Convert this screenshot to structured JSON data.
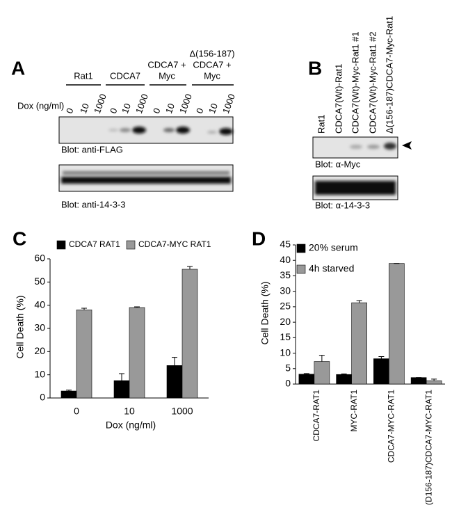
{
  "blots": {
    "A": {
      "panel": "A",
      "groups": [
        [
          "Rat1"
        ],
        [
          "CDCA7"
        ],
        [
          "CDCA7 +",
          "Myc"
        ],
        [
          "Δ(156-187)",
          "CDCA7 +",
          "Myc"
        ]
      ],
      "dox_label": "Dox (ng/ml)",
      "lanes": [
        "0",
        "10",
        "1000",
        "0",
        "10",
        "1000",
        "0",
        "10",
        "1000",
        "0",
        "10",
        "1000"
      ],
      "blot_labels": [
        "Blot: anti-FLAG",
        "Blot: anti-14-3-3"
      ]
    },
    "B": {
      "panel": "B",
      "lanes": [
        "Rat1",
        "CDCA7(Wt)-Rat1",
        "CDCA7(Wt)-Myc-Rat1 #1",
        "CDCA7(Wt)-Myc-Rat1 #2",
        "Δ(156-187)CDCA7-Myc-Rat1"
      ],
      "blot_labels": [
        "Blot: α-Myc",
        "Blot: α-14-3-3"
      ]
    }
  },
  "chart_data": [
    {
      "type": "bar",
      "panel": "C",
      "x_label": "Dox (ng/ml)",
      "y_label": "Cell Death (%)",
      "categories": [
        "0",
        "10",
        "1000"
      ],
      "series": [
        {
          "name": "CDCA7 RAT1",
          "color": "#000000",
          "values": [
            3,
            7.5,
            14
          ],
          "errors": [
            0.4,
            3,
            3.5
          ]
        },
        {
          "name": "CDCA7-MYC RAT1",
          "color": "#999999",
          "values": [
            38,
            39,
            55.5
          ],
          "errors": [
            0.7,
            0.3,
            1.2
          ]
        }
      ],
      "ylim": [
        0,
        60
      ],
      "yticks": [
        0,
        10,
        20,
        30,
        40,
        50,
        60
      ],
      "legend": "top"
    },
    {
      "type": "bar",
      "panel": "D",
      "y_label": "Cell Death (%)",
      "categories": [
        "CDCA7-RAT1",
        "MYC-RAT1",
        "CDCA7-MYC-RAT1",
        "(D156-187)CDCA7-MYC-RAT1"
      ],
      "series": [
        {
          "name": "20% serum",
          "color": "#000000",
          "values": [
            3.2,
            3.1,
            8.2,
            2.1
          ],
          "errors": [
            0.2,
            0.2,
            0.7,
            0
          ]
        },
        {
          "name": "4h starved",
          "color": "#999999",
          "values": [
            7.3,
            26.3,
            39,
            1.1
          ],
          "errors": [
            2,
            0.7,
            0,
            0.5
          ]
        }
      ],
      "ylim": [
        0,
        45
      ],
      "yticks": [
        0,
        5,
        10,
        15,
        20,
        25,
        30,
        35,
        40,
        45
      ],
      "legend": "top-left"
    }
  ]
}
